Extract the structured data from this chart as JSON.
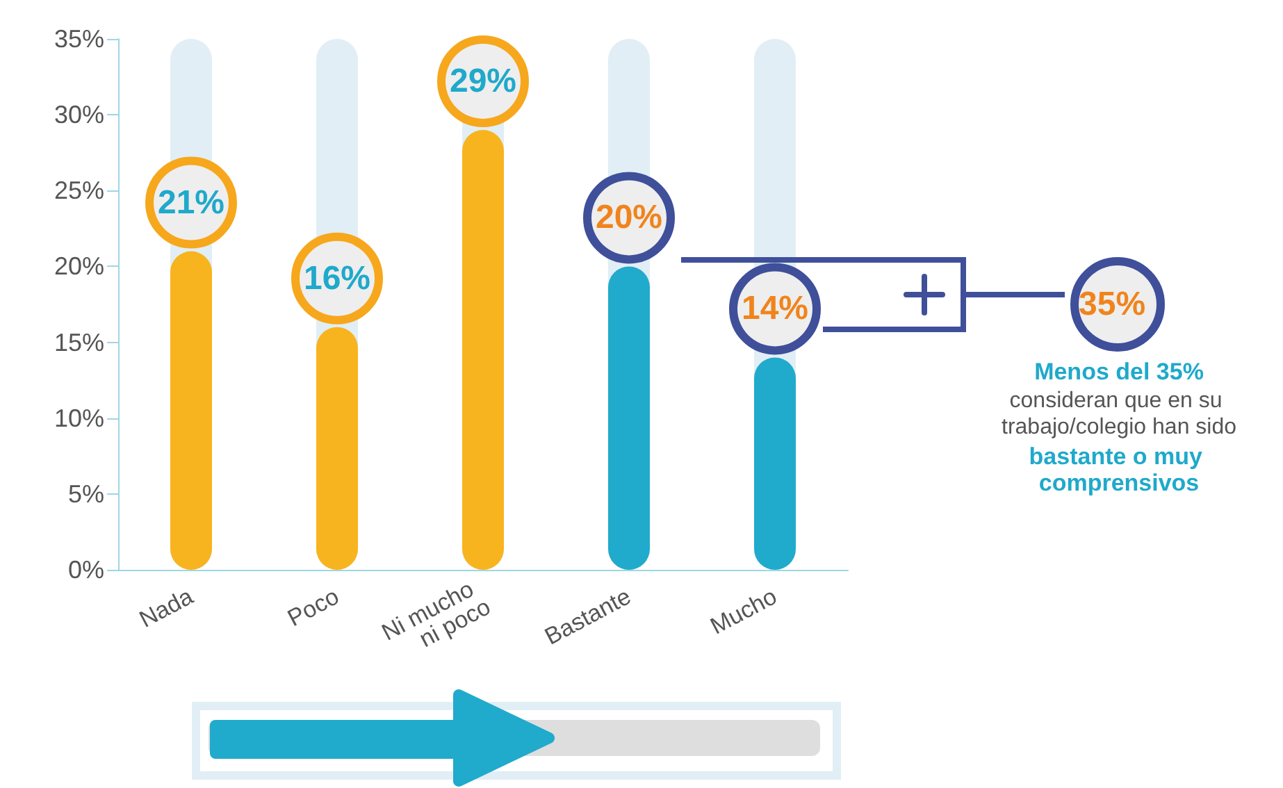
{
  "chart_data": {
    "type": "bar",
    "categories": [
      "Nada",
      "Poco",
      "Ni mucho ni poco",
      "Bastante",
      "Mucho"
    ],
    "values": [
      21,
      16,
      29,
      20,
      14
    ],
    "colors": [
      "#f8b41e",
      "#f8b41e",
      "#f8b41e",
      "#20aacc",
      "#20aacc"
    ],
    "value_labels": [
      "21%",
      "16%",
      "29%",
      "20%",
      "14%"
    ],
    "ylim": [
      0,
      35
    ],
    "yticks": [
      {
        "value": 0,
        "label": "0%"
      },
      {
        "value": 5,
        "label": "5%"
      },
      {
        "value": 10,
        "label": "10%"
      },
      {
        "value": 15,
        "label": "15%"
      },
      {
        "value": 20,
        "label": "20%"
      },
      {
        "value": 25,
        "label": "25%"
      },
      {
        "value": 30,
        "label": "30%"
      },
      {
        "value": 35,
        "label": "35%"
      }
    ],
    "grid": false,
    "annotations": [
      "35%",
      "Menos del 35%",
      "consideran que en su trabajo/colegio han sido",
      "bastante o muy comprensivos"
    ]
  }
}
